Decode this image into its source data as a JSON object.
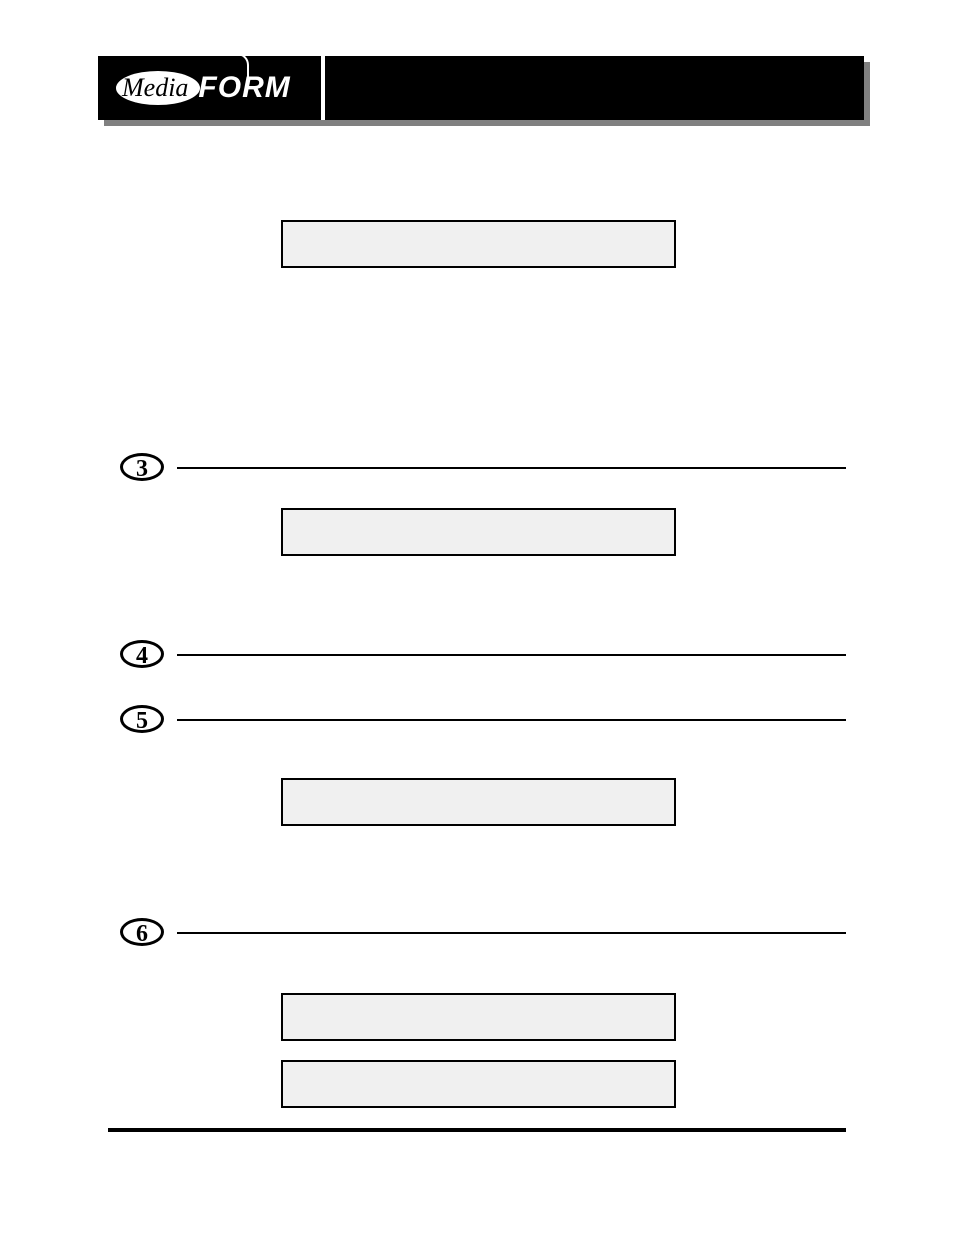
{
  "logo": {
    "media": "Media",
    "form": "FORM"
  },
  "steps": [
    {
      "number": "3"
    },
    {
      "number": "4"
    },
    {
      "number": "5"
    },
    {
      "number": "6"
    }
  ],
  "lcd_boxes": {
    "bg_color": "#f0f0f0",
    "border_color": "#000000",
    "border_width": 2
  },
  "header": {
    "bg_color": "#000000",
    "shadow_color": "#808080"
  }
}
